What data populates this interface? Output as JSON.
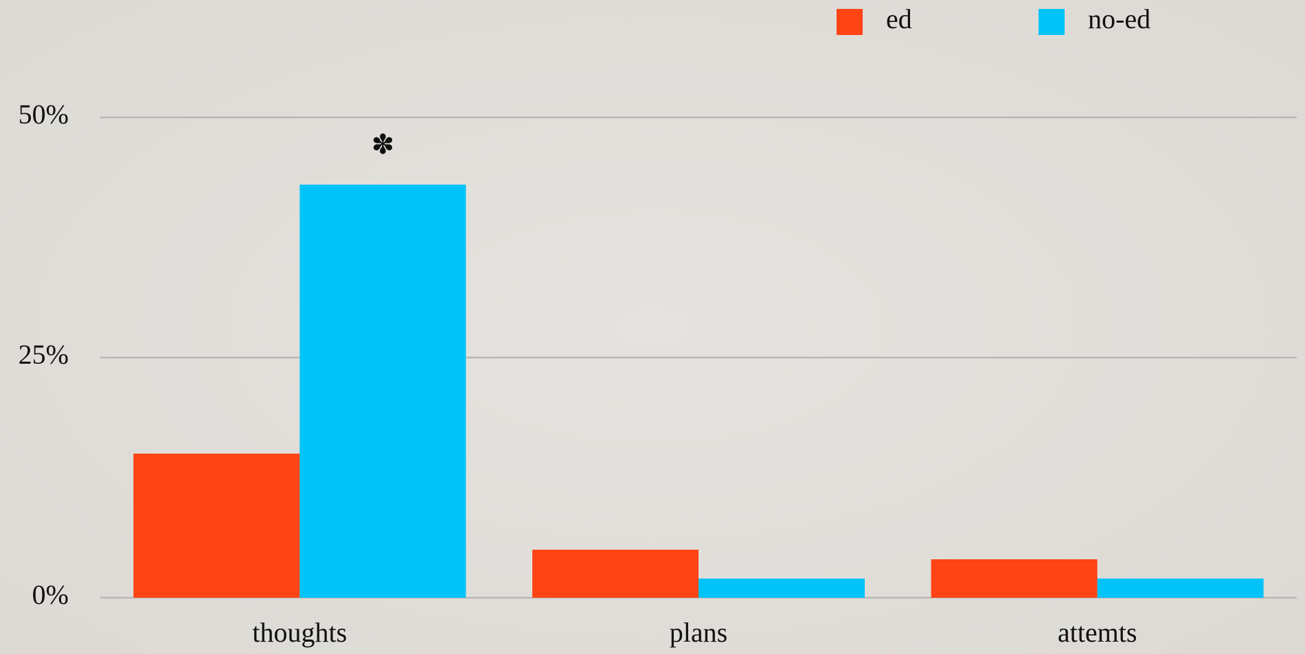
{
  "chart_data": {
    "type": "bar",
    "categories": [
      "thoughts",
      "plans",
      "attemts"
    ],
    "series": [
      {
        "name": "ed",
        "color": "#ff4415",
        "values": [
          15,
          5,
          4
        ]
      },
      {
        "name": "no-ed",
        "color": "#00c4f9",
        "values": [
          43,
          2,
          2
        ]
      }
    ],
    "ylim": [
      0,
      50
    ],
    "yticks": [
      {
        "value": 0,
        "label": "0%"
      },
      {
        "value": 25,
        "label": "25%"
      },
      {
        "value": 50,
        "label": "50%"
      }
    ],
    "grid": true,
    "legend": "top-right",
    "annotation": "✽",
    "annotation_color": "#1a3ef0"
  }
}
